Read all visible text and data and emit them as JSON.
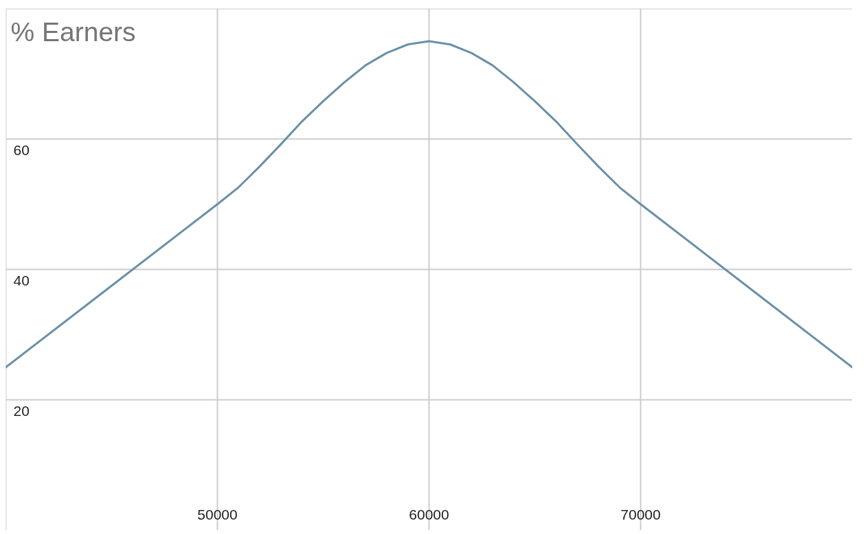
{
  "chart_data": {
    "type": "line",
    "ylabel": "% Earners",
    "x": [
      40000,
      45000,
      50000,
      51000,
      52000,
      53000,
      54000,
      55000,
      56000,
      57000,
      58000,
      59000,
      60000,
      61000,
      62000,
      63000,
      64000,
      65000,
      66000,
      67000,
      68000,
      69000,
      70000,
      75000,
      80000
    ],
    "series": [
      {
        "color": "#6990a9",
        "values": [
          25,
          37.5,
          50,
          52.6,
          55.8,
          59.2,
          62.7,
          65.8,
          68.7,
          71.3,
          73.2,
          74.5,
          75,
          74.5,
          73.2,
          71.3,
          68.7,
          65.8,
          62.7,
          59.2,
          55.8,
          52.6,
          50,
          37.5,
          25
        ]
      }
    ],
    "xlim": [
      40000,
      80000
    ],
    "ylim": [
      0,
      80
    ],
    "xticks": [
      {
        "value": 40000,
        "label": null
      },
      50000,
      60000,
      70000
    ],
    "yticks": [
      20,
      40,
      60,
      {
        "value": 80,
        "label": null
      }
    ],
    "grid": true
  }
}
